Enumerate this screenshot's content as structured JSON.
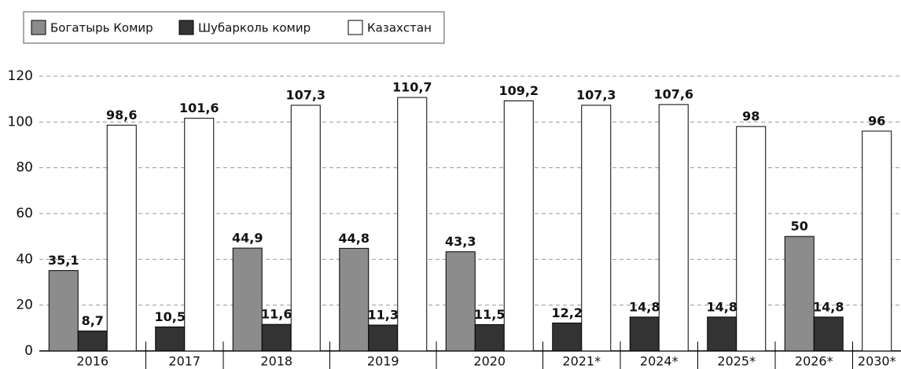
{
  "chart_data": {
    "type": "bar",
    "categories": [
      "2016",
      "2017",
      "2018",
      "2019",
      "2020",
      "2021*",
      "2024*",
      "2025*",
      "2026*",
      "2030*"
    ],
    "series": [
      {
        "name": "Богатырь Комир",
        "color": "#8c8c8c",
        "values": [
          35.1,
          null,
          44.9,
          44.8,
          43.3,
          null,
          null,
          null,
          50,
          null
        ],
        "value_labels": [
          "35,1",
          null,
          "44,9",
          "44,8",
          "43,3",
          null,
          null,
          null,
          "50",
          null
        ]
      },
      {
        "name": "Шубарколь комир",
        "color": "#333333",
        "values": [
          8.7,
          10.5,
          11.6,
          11.3,
          11.5,
          12.2,
          14.8,
          14.8,
          14.8,
          null
        ],
        "value_labels": [
          "8,7",
          "10,5",
          "11,6",
          "11,3",
          "11,5",
          "12,2",
          "14,8",
          "14,8",
          "14,8",
          null
        ]
      },
      {
        "name": "Казахстан",
        "color": "#ffffff",
        "values": [
          98.6,
          101.6,
          107.3,
          110.7,
          109.2,
          107.3,
          107.6,
          98,
          null,
          96
        ],
        "value_labels": [
          "98,6",
          "101,6",
          "107,3",
          "110,7",
          "109,2",
          "107,3",
          "107,6",
          "98",
          null,
          "96"
        ]
      }
    ],
    "ylim": [
      0,
      120
    ],
    "yticks": [
      0,
      20,
      40,
      60,
      80,
      100,
      120
    ],
    "grid": true
  }
}
